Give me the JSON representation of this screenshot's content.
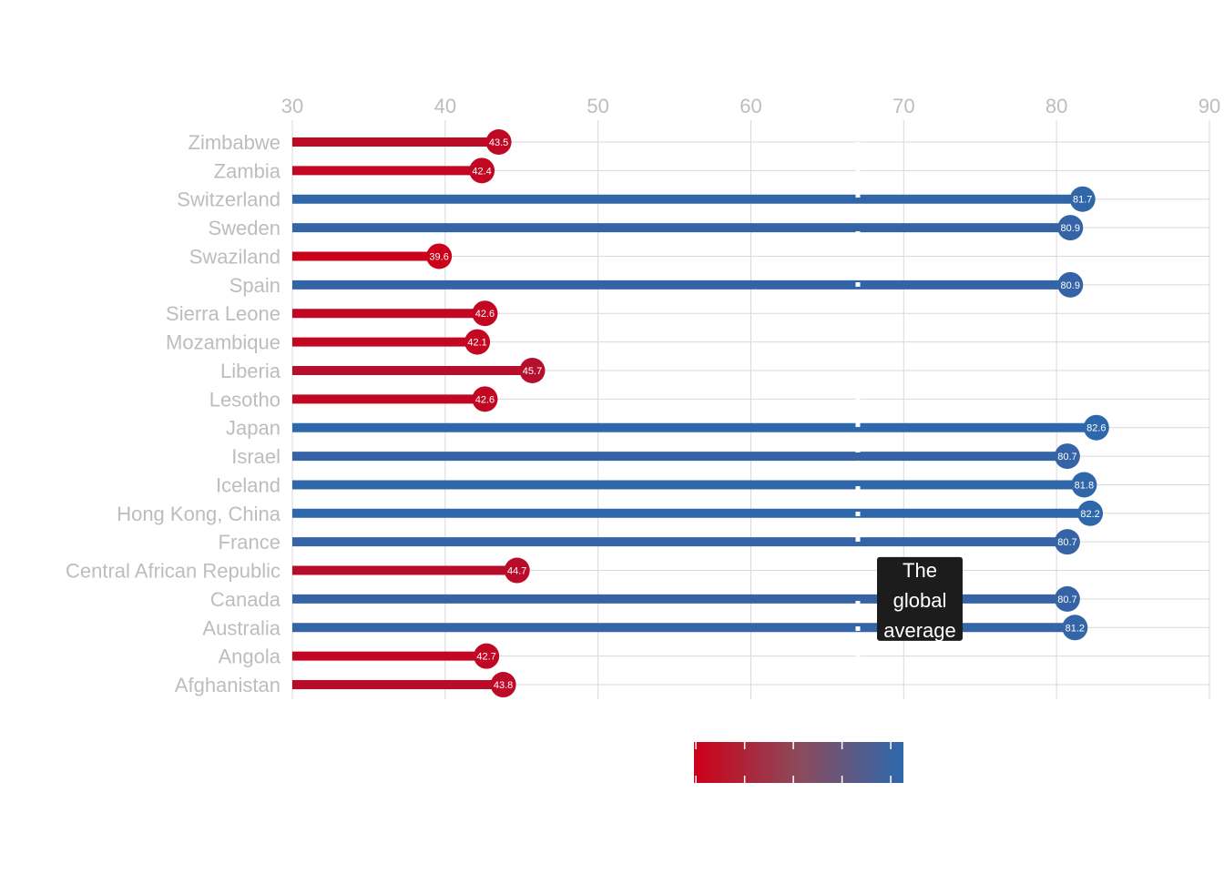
{
  "chart_data": {
    "type": "bar",
    "orientation": "horizontal",
    "style": "lollipop",
    "categories": [
      "Zimbabwe",
      "Zambia",
      "Switzerland",
      "Sweden",
      "Swaziland",
      "Spain",
      "Sierra Leone",
      "Mozambique",
      "Liberia",
      "Lesotho",
      "Japan",
      "Israel",
      "Iceland",
      "Hong Kong, China",
      "France",
      "Central African Republic",
      "Canada",
      "Australia",
      "Angola",
      "Afghanistan"
    ],
    "values": [
      43.5,
      42.4,
      81.7,
      80.9,
      39.6,
      80.9,
      42.6,
      42.1,
      45.7,
      42.6,
      82.6,
      80.7,
      81.8,
      82.2,
      80.7,
      44.7,
      80.7,
      81.2,
      42.7,
      43.8
    ],
    "value_labels": [
      "43.5",
      "42.4",
      "81.7",
      "80.9",
      "39.6",
      "80.9",
      "42.6",
      "42.1",
      "45.7",
      "42.6",
      "82.6",
      "80.7",
      "81.8",
      "82.2",
      "80.7",
      "44.7",
      "80.7",
      "81.2",
      "42.7",
      "43.8"
    ],
    "title": "",
    "xlabel": "",
    "ylabel": "",
    "xlim": [
      30,
      90
    ],
    "xticks": [
      30,
      40,
      50,
      60,
      70,
      80,
      90
    ],
    "xtick_labels": [
      "30",
      "40",
      "50",
      "60",
      "70",
      "80",
      "90"
    ],
    "x_axis_position": "top",
    "grid": true,
    "global_average": 67,
    "annotation": {
      "lines": [
        "The",
        "global",
        "average"
      ],
      "at_category": "Canada"
    },
    "colors": {
      "low": "#cc0018",
      "high": "#2e68ac"
    },
    "colorbar": {
      "range": [
        39.6,
        82.6
      ],
      "placement": "bottom"
    }
  }
}
